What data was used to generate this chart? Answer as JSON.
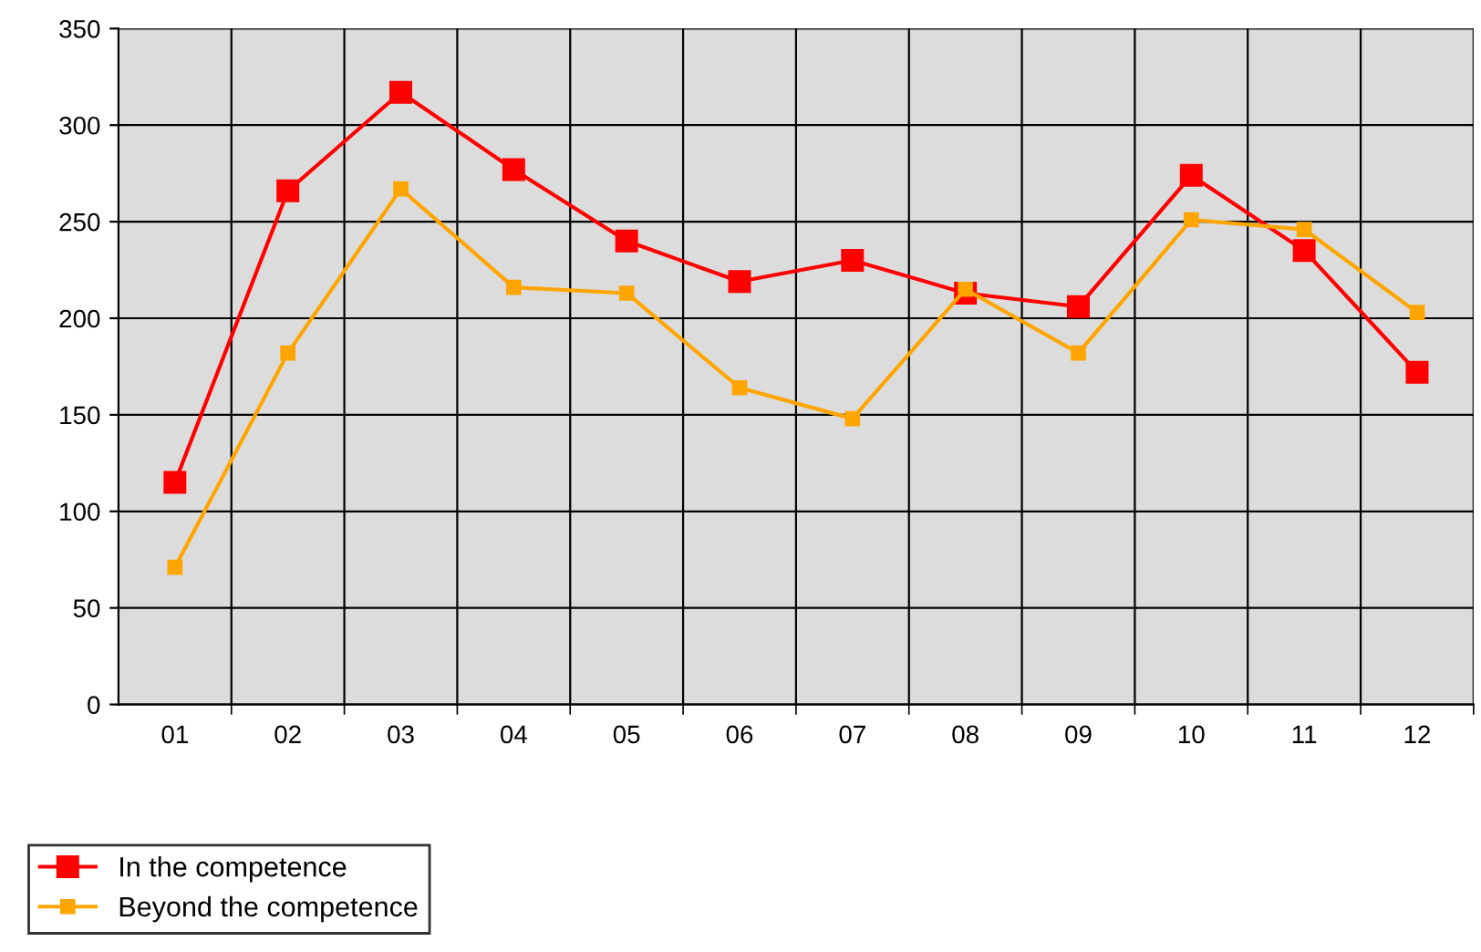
{
  "chart_data": {
    "type": "line",
    "categories": [
      "01",
      "02",
      "03",
      "04",
      "05",
      "06",
      "07",
      "08",
      "09",
      "10",
      "11",
      "12"
    ],
    "series": [
      {
        "name": "In the competence",
        "color": "#ff0000",
        "values": [
          115,
          266,
          317,
          277,
          240,
          219,
          230,
          213,
          206,
          274,
          235,
          172
        ]
      },
      {
        "name": "Beyond the competence",
        "color": "#ffa500",
        "values": [
          71,
          182,
          267,
          216,
          213,
          164,
          148,
          215,
          182,
          251,
          246,
          203
        ]
      }
    ],
    "ylim": [
      0,
      350
    ],
    "yticks": [
      0,
      50,
      100,
      150,
      200,
      250,
      300,
      350
    ],
    "grid": true,
    "legend": "bottom left",
    "marker": "square",
    "line_style": "solid"
  }
}
